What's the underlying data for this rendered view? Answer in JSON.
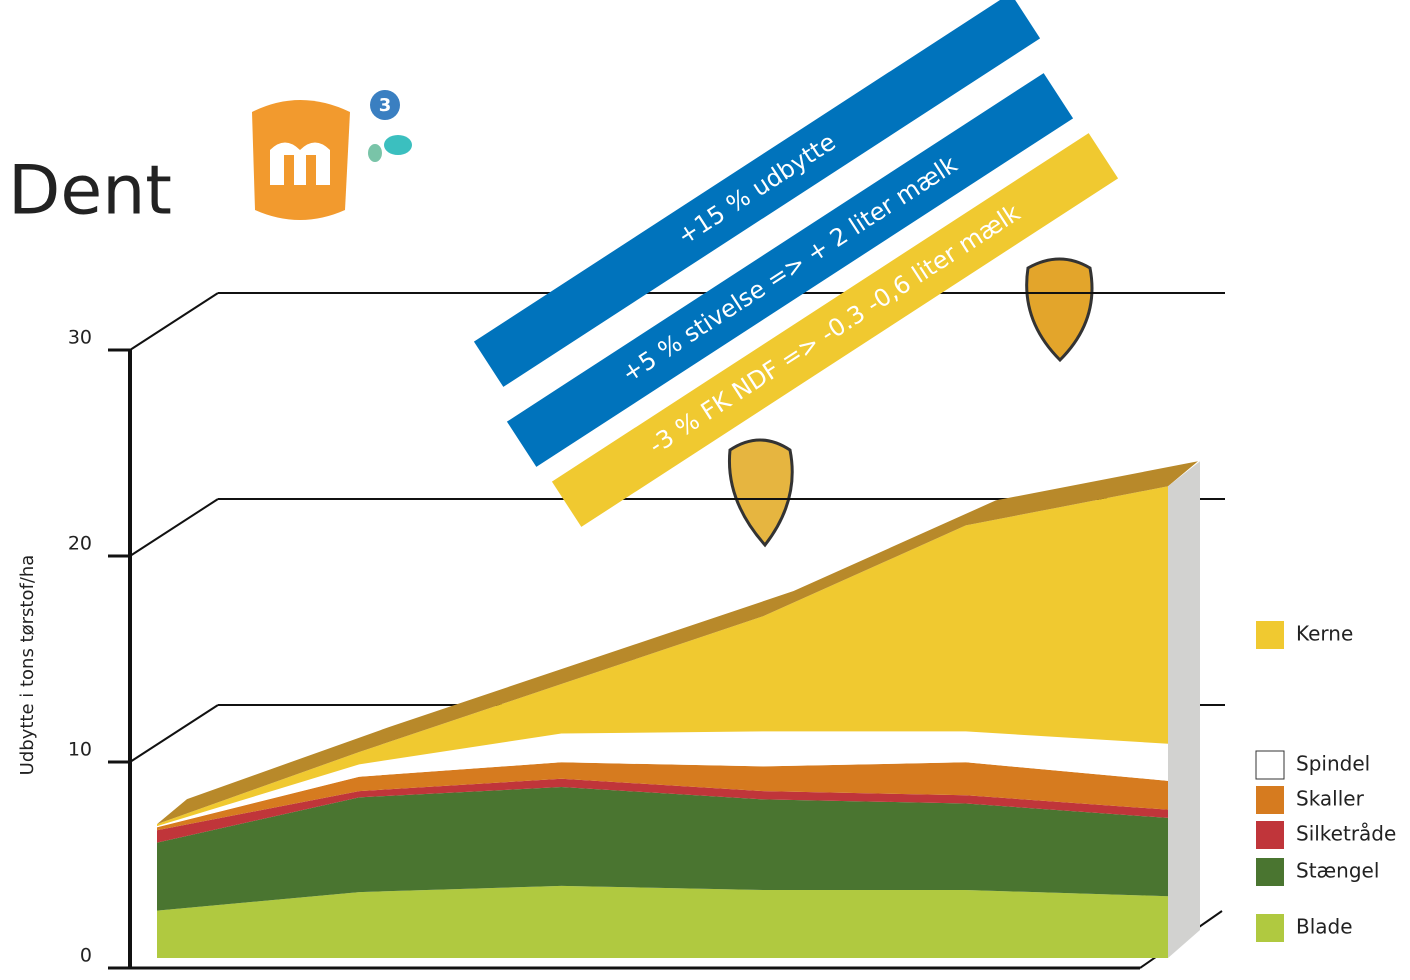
{
  "chart_data": {
    "type": "area",
    "title": "Dent",
    "y_label": "Udbytte i tons tørstof/ha",
    "categories": [
      null,
      null,
      null,
      null,
      null,
      null
    ],
    "series": [
      {
        "name": "Blade",
        "color": "#b0c940",
        "values": [
          2.3,
          3.2,
          3.5,
          3.3,
          3.3,
          3.0
        ]
      },
      {
        "name": "Stængel",
        "color": "#4a7530",
        "values": [
          3.3,
          4.6,
          4.8,
          4.4,
          4.2,
          3.8
        ]
      },
      {
        "name": "Silketråde",
        "color": "#c0353a",
        "values": [
          0.6,
          0.3,
          0.4,
          0.4,
          0.4,
          0.4
        ]
      },
      {
        "name": "Skaller",
        "color": "#d67b1f",
        "values": [
          0.15,
          0.7,
          0.8,
          1.2,
          1.6,
          1.4
        ]
      },
      {
        "name": "Spindel",
        "color": "#ffffff",
        "values": [
          0.05,
          0.6,
          1.4,
          1.7,
          1.5,
          1.8
        ]
      },
      {
        "name": "Kerne",
        "color": "#f0c930",
        "values": [
          0.1,
          0.6,
          2.4,
          5.6,
          10.0,
          12.5
        ]
      }
    ],
    "ylim": [
      0,
      30
    ],
    "yticks": [
      0,
      10,
      20,
      30
    ],
    "annotations": [
      "+15 % udbytte",
      "+5 % stivelse => + 2 liter mælk",
      "-3 % FK NDF => -0.3 -0,6 liter mælk"
    ]
  }
}
